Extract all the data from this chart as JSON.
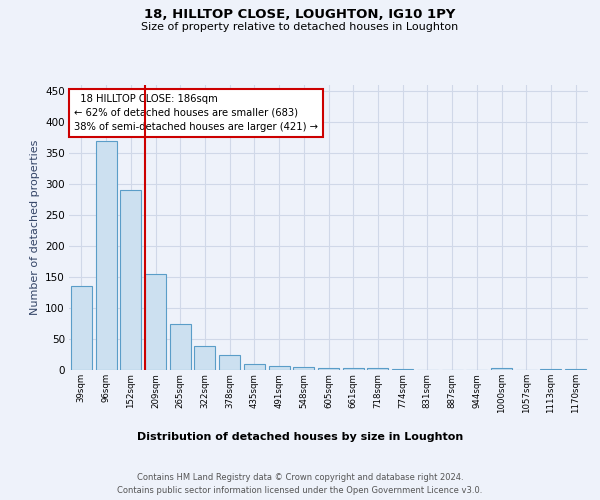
{
  "title1": "18, HILLTOP CLOSE, LOUGHTON, IG10 1PY",
  "title2": "Size of property relative to detached houses in Loughton",
  "xlabel": "Distribution of detached houses by size in Loughton",
  "ylabel": "Number of detached properties",
  "footer1": "Contains HM Land Registry data © Crown copyright and database right 2024.",
  "footer2": "Contains public sector information licensed under the Open Government Licence v3.0.",
  "categories": [
    "39sqm",
    "96sqm",
    "152sqm",
    "209sqm",
    "265sqm",
    "322sqm",
    "378sqm",
    "435sqm",
    "491sqm",
    "548sqm",
    "605sqm",
    "661sqm",
    "718sqm",
    "774sqm",
    "831sqm",
    "887sqm",
    "944sqm",
    "1000sqm",
    "1057sqm",
    "1113sqm",
    "1170sqm"
  ],
  "values": [
    136,
    370,
    290,
    155,
    74,
    38,
    25,
    10,
    7,
    5,
    3,
    3,
    3,
    2,
    0,
    0,
    0,
    3,
    0,
    2,
    2
  ],
  "bar_color": "#cce0f0",
  "bar_edge_color": "#5a9dc8",
  "vline_bin": 3,
  "vline_color": "#cc0000",
  "annotation_text": "  18 HILLTOP CLOSE: 186sqm\n← 62% of detached houses are smaller (683)\n38% of semi-detached houses are larger (421) →",
  "annotation_box_color": "#cc0000",
  "ylim": [
    0,
    460
  ],
  "yticks": [
    0,
    50,
    100,
    150,
    200,
    250,
    300,
    350,
    400,
    450
  ],
  "background_color": "#eef2fa",
  "grid_color": "#d0d8e8",
  "figsize": [
    6.0,
    5.0
  ],
  "dpi": 100
}
